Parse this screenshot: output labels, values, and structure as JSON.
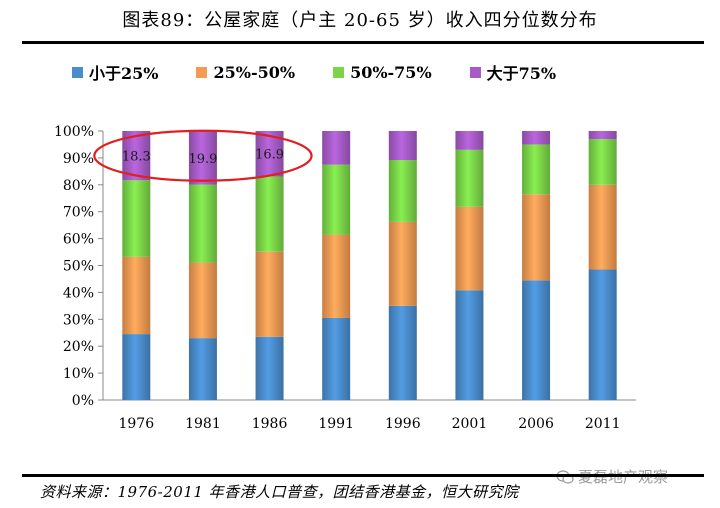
{
  "title": "图表89：公屋家庭（户主 20-65 岁）收入四分位数分布",
  "source": "资料来源：1976-2011 年香港人口普查，团结香港基金，恒大研究院",
  "watermark": "夏磊地产观察",
  "chart_data": {
    "type": "bar",
    "stacked": true,
    "categories": [
      "1976",
      "1981",
      "1986",
      "1991",
      "1996",
      "2001",
      "2006",
      "2011"
    ],
    "series": [
      {
        "name": "小于25%",
        "color": "#4a8ccc",
        "values": [
          24.5,
          23.0,
          23.5,
          30.5,
          35.0,
          40.8,
          44.5,
          48.5
        ]
      },
      {
        "name": "25%-50%",
        "color": "#f39a53",
        "values": [
          28.7,
          28.1,
          31.6,
          31.0,
          31.2,
          31.0,
          32.0,
          31.5
        ]
      },
      {
        "name": "50%-75%",
        "color": "#7ad548",
        "values": [
          28.5,
          29.0,
          28.0,
          26.0,
          23.0,
          21.2,
          18.5,
          17.0
        ]
      },
      {
        "name": "大于75%",
        "color": "#a65bc7",
        "values": [
          18.3,
          19.9,
          16.9,
          12.5,
          10.8,
          7.0,
          5.0,
          3.0
        ]
      }
    ],
    "data_labels": [
      {
        "category": "1976",
        "series": "大于75%",
        "text": "18.3"
      },
      {
        "category": "1981",
        "series": "大于75%",
        "text": "19.9"
      },
      {
        "category": "1986",
        "series": "大于75%",
        "text": "16.9"
      }
    ],
    "ylim": [
      0,
      100
    ],
    "yticks": [
      "0%",
      "10%",
      "20%",
      "30%",
      "40%",
      "50%",
      "60%",
      "70%",
      "80%",
      "90%",
      "100%"
    ],
    "grid": false,
    "legend_position": "top",
    "highlight": {
      "shape": "ellipse",
      "color": "#e02020",
      "categories": [
        "1976",
        "1981",
        "1986"
      ]
    }
  }
}
